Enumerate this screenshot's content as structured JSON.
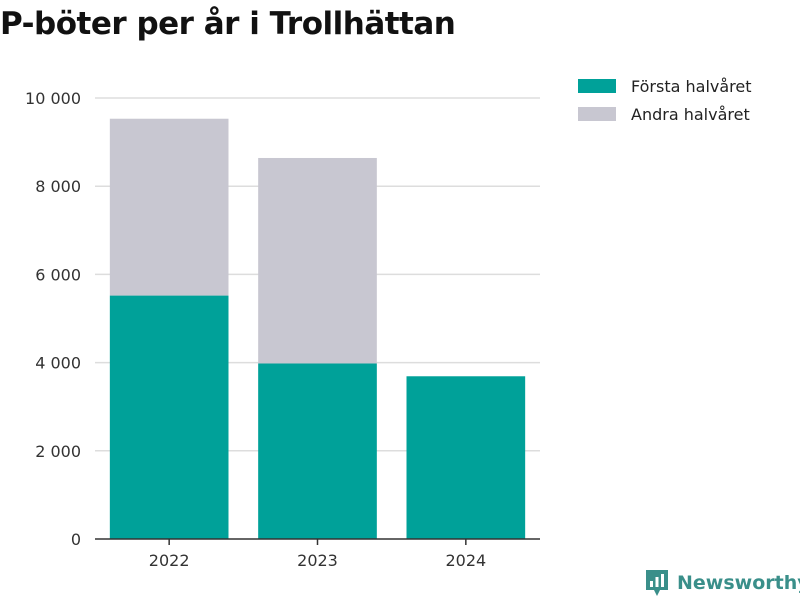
{
  "chart_data": {
    "type": "bar",
    "stacked": true,
    "title": "P-böter per år i Trollhättan",
    "xlabel": "",
    "ylabel": "",
    "categories": [
      "2022",
      "2023",
      "2024"
    ],
    "series": [
      {
        "name": "Första halvåret",
        "values": [
          5520,
          3980,
          3690
        ],
        "color": "#00a199"
      },
      {
        "name": "Andra halvåret",
        "values": [
          4010,
          4660,
          0
        ],
        "color": "#c8c7d1"
      }
    ],
    "ylim": [
      0,
      10000
    ],
    "y_ticks": [
      0,
      2000,
      4000,
      6000,
      8000,
      10000
    ],
    "y_tick_labels": [
      "0",
      "2 000",
      "4 000",
      "6 000",
      "8 000",
      "10 000"
    ],
    "grid": true,
    "legend_position": "top-right"
  },
  "brand": {
    "name": "Newsworthy",
    "color": "#3a8f8a",
    "icon": "newsworthy-logo-icon"
  }
}
